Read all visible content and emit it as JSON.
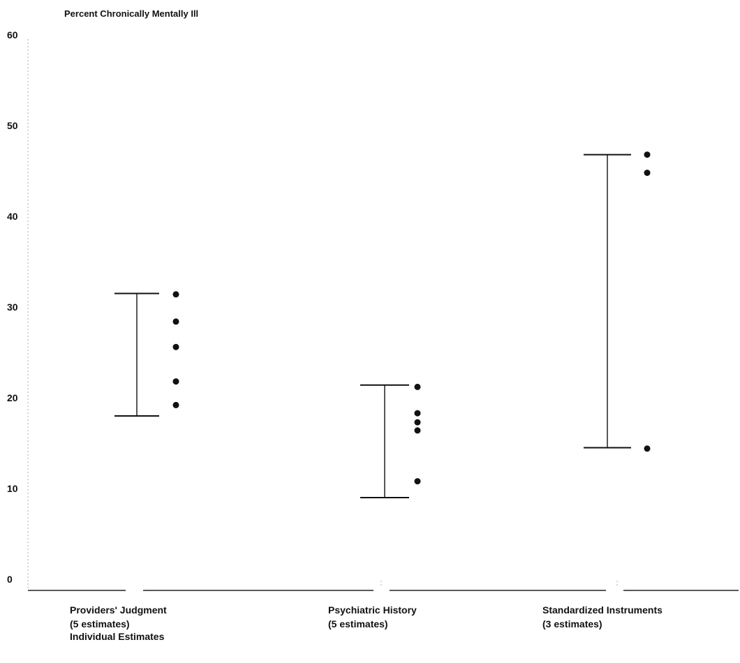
{
  "chart_data": {
    "type": "scatter",
    "ylabel": "Percent Chronically Mentally Ill",
    "ylim": [
      0,
      60
    ],
    "yticks": [
      0,
      10,
      20,
      30,
      40,
      50,
      60
    ],
    "grid": false,
    "footnote": "Individual Estimates",
    "groups": [
      {
        "label": "Providers' Judgment",
        "sublabel": "(5 estimates)",
        "range": [
          18,
          31.5
        ],
        "estimates": [
          19.2,
          21.8,
          25.6,
          28.4,
          31.4
        ]
      },
      {
        "label": "Psychiatric History",
        "sublabel": "(5 estimates)",
        "range": [
          9,
          21.4
        ],
        "estimates": [
          10.8,
          16.4,
          17.3,
          18.3,
          21.2
        ]
      },
      {
        "label": "Standardized Instruments",
        "sublabel": "(3 estimates)",
        "range": [
          14.5,
          46.8
        ],
        "estimates": [
          14.4,
          44.8,
          46.8
        ]
      }
    ]
  }
}
